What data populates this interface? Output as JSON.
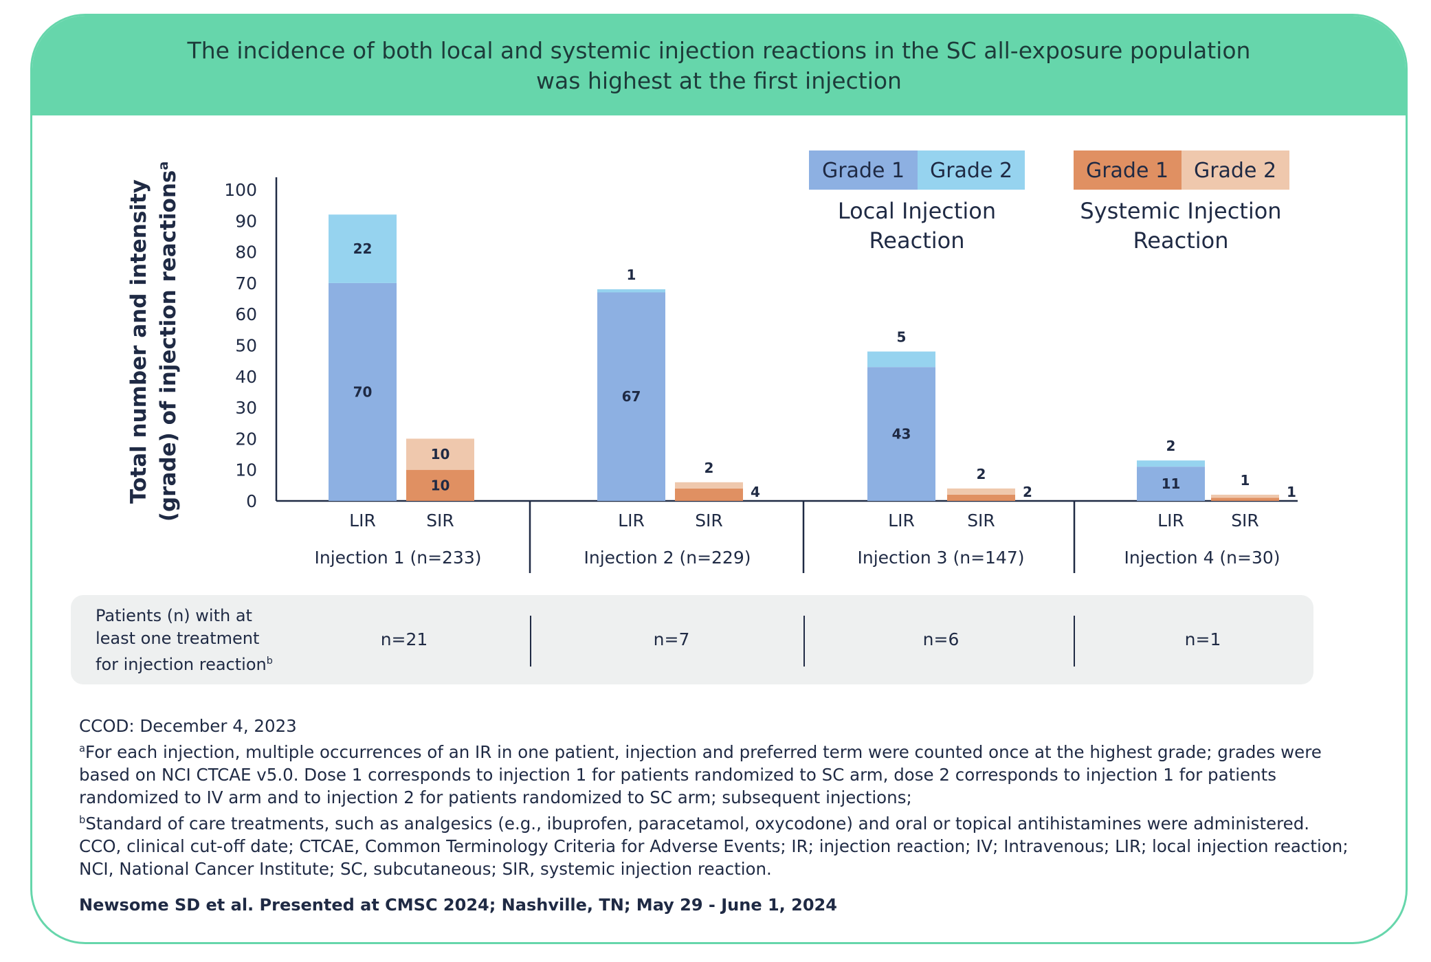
{
  "banner": {
    "line1": "The incidence of both local and systemic injection reactions in the SC all-exposure population",
    "line2": "was highest at the first injection"
  },
  "colors": {
    "lir_grade1": "#8db0e2",
    "lir_grade2": "#96d3ef",
    "sir_grade1": "#e09062",
    "sir_grade2": "#efc8ad",
    "banner": "#66d6ab",
    "text": "#1f2a44"
  },
  "legend": {
    "local": {
      "grade1": "Grade 1",
      "grade2": "Grade 2",
      "title_line1": "Local Injection",
      "title_line2": "Reaction"
    },
    "systemic": {
      "grade1": "Grade 1",
      "grade2": "Grade 2",
      "title_line1": "Systemic Injection",
      "title_line2": "Reaction"
    }
  },
  "chart_data": {
    "type": "bar",
    "stacked": true,
    "ylabel_line1": "Total number and intensity",
    "ylabel_line2": "(grade) of injection reactions",
    "ylabel_sup": "a",
    "ylim": [
      0,
      100
    ],
    "yticks": [
      0,
      10,
      20,
      30,
      40,
      50,
      60,
      70,
      80,
      90,
      100
    ],
    "groups": [
      {
        "label": "Injection 1 (n=233)",
        "bars": [
          {
            "label": "LIR",
            "kind": "local",
            "grade1": 70,
            "grade2": 22
          },
          {
            "label": "SIR",
            "kind": "systemic",
            "grade1": 10,
            "grade2": 10
          }
        ]
      },
      {
        "label": "Injection 2 (n=229)",
        "bars": [
          {
            "label": "LIR",
            "kind": "local",
            "grade1": 67,
            "grade2": 1
          },
          {
            "label": "SIR",
            "kind": "systemic",
            "grade1": 4,
            "grade2": 2
          }
        ]
      },
      {
        "label": "Injection 3 (n=147)",
        "bars": [
          {
            "label": "LIR",
            "kind": "local",
            "grade1": 43,
            "grade2": 5
          },
          {
            "label": "SIR",
            "kind": "systemic",
            "grade1": 2,
            "grade2": 2
          }
        ]
      },
      {
        "label": "Injection 4 (n=30)",
        "bars": [
          {
            "label": "LIR",
            "kind": "local",
            "grade1": 11,
            "grade2": 2
          },
          {
            "label": "SIR",
            "kind": "systemic",
            "grade1": 1,
            "grade2": 1
          }
        ]
      }
    ]
  },
  "summary": {
    "label_line1": "Patients (n) with at",
    "label_line2": "least one treatment",
    "label_line3": "for injection reaction",
    "label_sup": "b",
    "values": [
      "n=21",
      "n=7",
      "n=6",
      "n=1"
    ]
  },
  "notes": {
    "ccod": "CCOD: December 4, 2023",
    "a_sup": "a",
    "a_text": "For each injection, multiple occurrences of an IR in one patient, injection and preferred term were counted once at the highest grade; grades were based on NCI CTCAE v5.0. Dose 1 corresponds to injection 1 for patients randomized to SC arm, dose 2 corresponds to injection 1 for patients randomized to IV arm and to injection 2 for patients randomized to SC arm; subsequent injections;",
    "b_sup": "b",
    "b_text": "Standard of care treatments, such as analgesics (e.g., ibuprofen, paracetamol, oxycodone) and oral or topical antihistamines were administered.",
    "abbrev": "CCO, clinical cut-off date; CTCAE, Common Terminology Criteria for Adverse Events; IR; injection reaction; IV; Intravenous; LIR; local injection reaction; NCI, National Cancer Institute; SC, subcutaneous; SIR, systemic injection reaction."
  },
  "citation": "Newsome SD et al. Presented at CMSC 2024; Nashville, TN; May 29 - June 1, 2024"
}
